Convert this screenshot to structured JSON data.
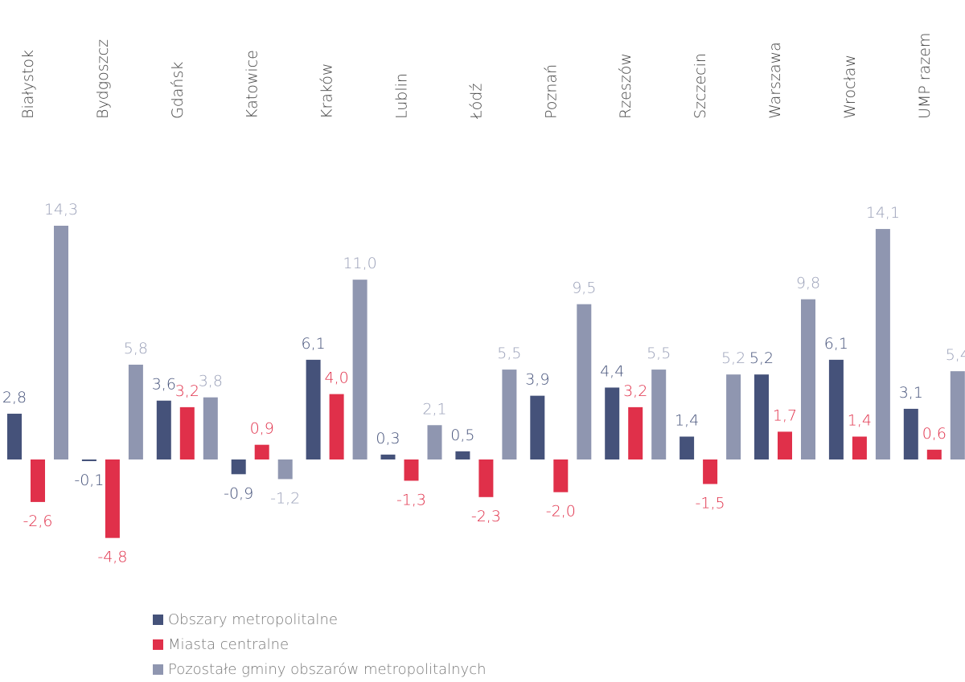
{
  "chart_data": {
    "type": "bar",
    "categories": [
      "Białystok",
      "Bydgoszcz",
      "Gdańsk",
      "Katowice",
      "Kraków",
      "Lublin",
      "Łódź",
      "Poznań",
      "Rzeszów",
      "Szczecin",
      "Warszawa",
      "Wrocław",
      "UMP razem"
    ],
    "series": [
      {
        "name": "Obszary metropolitalne",
        "color": "#45527a",
        "values": [
          2.8,
          -0.1,
          3.6,
          -0.9,
          6.1,
          0.3,
          0.5,
          3.9,
          4.4,
          1.4,
          5.2,
          6.1,
          3.1
        ],
        "value_labels": [
          "2,8",
          "-0,1",
          "3,6",
          "-0,9",
          "6,1",
          "0,3",
          "0,5",
          "3,9",
          "4,4",
          "1,4",
          "5,2",
          "6,1",
          "3,1"
        ]
      },
      {
        "name": "Miasta centralne",
        "color": "#e0304a",
        "values": [
          -2.6,
          -4.8,
          3.2,
          0.9,
          4.0,
          -1.3,
          -2.3,
          -2.0,
          3.2,
          -1.5,
          1.7,
          1.4,
          0.6
        ],
        "value_labels": [
          "-2,6",
          "-4,8",
          "3,2",
          "0,9",
          "4,0",
          "-1,3",
          "-2,3",
          "-2,0",
          "3,2",
          "-1,5",
          "1,7",
          "1,4",
          "0,6"
        ]
      },
      {
        "name": "Pozostałe gminy obszarów metropolitalnych",
        "color": "#8f96b0",
        "values": [
          14.3,
          5.8,
          3.8,
          -1.2,
          11.0,
          2.1,
          5.5,
          9.5,
          5.5,
          5.2,
          9.8,
          14.1,
          5.4
        ],
        "value_labels": [
          "14,3",
          "5,8",
          "3,8",
          "-1,2",
          "11,0",
          "2,1",
          "5,5",
          "9,5",
          "5,5",
          "5,2",
          "9,8",
          "14,1",
          "5,4"
        ]
      }
    ],
    "label_colors": [
      "#45527a",
      "#e0304a",
      "#9aa0b8"
    ]
  }
}
